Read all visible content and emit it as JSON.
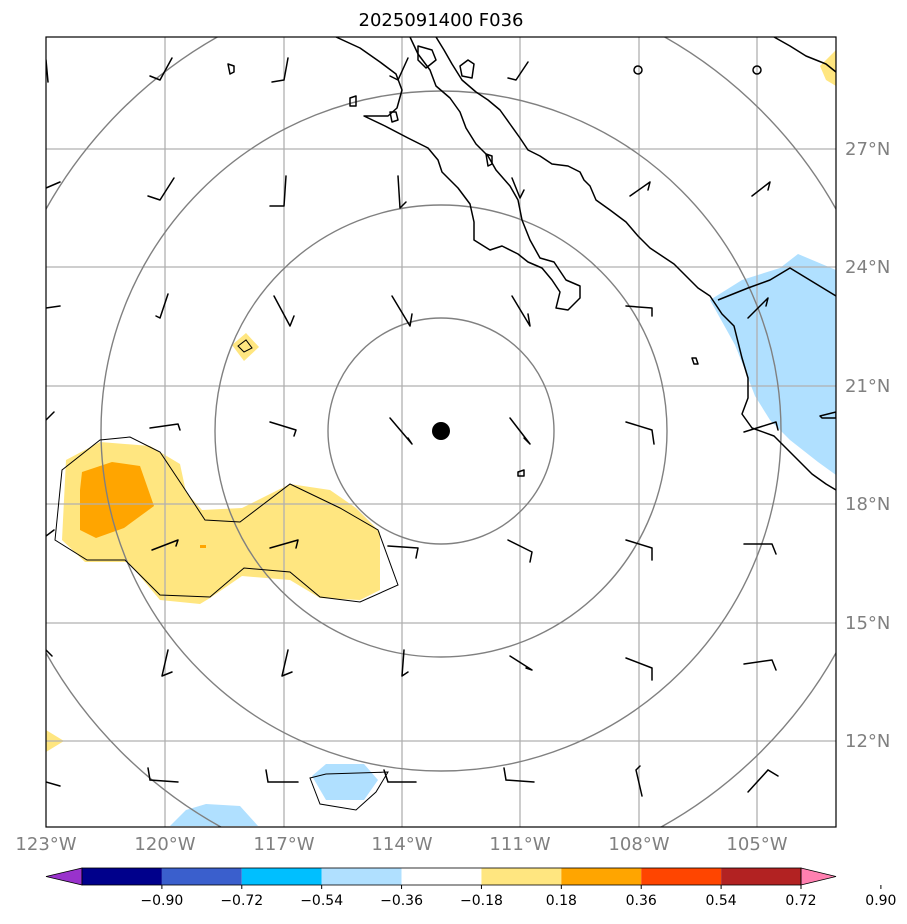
{
  "title": "2025091400 F036",
  "longitude_labels": [
    "123°W",
    "120°W",
    "117°W",
    "114°W",
    "111°W",
    "108°W",
    "105°W"
  ],
  "latitude_labels": [
    "27°N",
    "24°N",
    "21°N",
    "18°N",
    "15°N",
    "12°N"
  ],
  "colorbar": {
    "tick_labels": [
      "−0.90",
      "−0.72",
      "−0.54",
      "−0.36",
      "−0.18",
      "0.18",
      "0.36",
      "0.54",
      "0.72",
      "0.90"
    ],
    "colors": [
      "#9932cc",
      "#00008b",
      "#3a5fcd",
      "#00bfff",
      "#b0e0ff",
      "#ffffff",
      "#ffe680",
      "#ffa500",
      "#ff4500",
      "#b22222",
      "#ff80b0"
    ]
  },
  "map": {
    "center_marker": {
      "lon": -113.0,
      "lat": 19.85
    },
    "range_rings": "concentric",
    "colors": {
      "positive_light": "#ffe680",
      "positive_strong": "#ffa500",
      "negative_light": "#b0e0ff",
      "ring": "#808080",
      "grid": "#b0b0b0",
      "coast": "#000000"
    }
  }
}
